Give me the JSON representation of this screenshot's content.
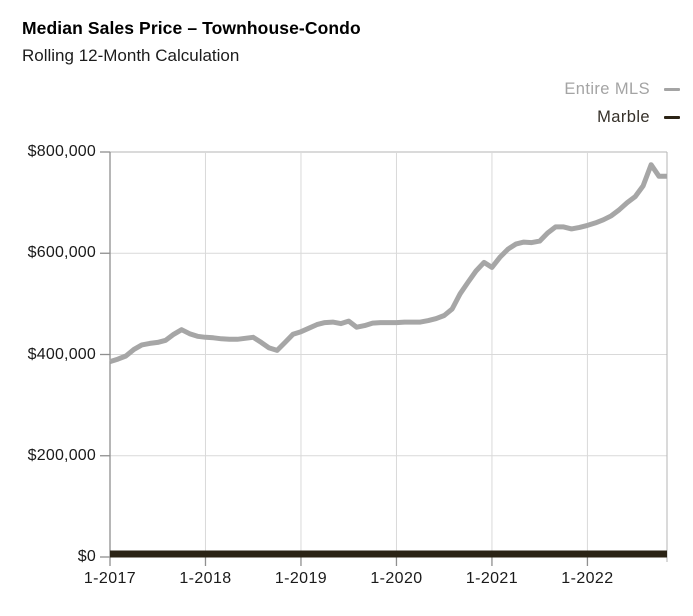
{
  "header": {
    "title": "Median Sales Price – Townhouse-Condo",
    "subtitle": "Rolling 12-Month Calculation"
  },
  "legend": [
    {
      "label": "Entire MLS",
      "color": "#a4a4a4",
      "label_color": "#a4a4a4",
      "icon": "dash"
    },
    {
      "label": "Marble",
      "color": "#2b2315",
      "label_color": "#353029",
      "icon": "dash"
    }
  ],
  "colors": {
    "background": "#ffffff",
    "entire_mls_line": "#a6a6a6",
    "marble_line": "#2b2315",
    "gridline": "#d9d9d9",
    "plot_border": "#b5b5b5",
    "axis": "#8f8f8f",
    "axis_text": "#1a1a1a"
  },
  "chart_data": {
    "type": "line",
    "title": "Median Sales Price – Townhouse-Condo",
    "subtitle": "Rolling 12-Month Calculation",
    "x_interval": "monthly",
    "x_first": "1-2017",
    "x_last": "11-2022",
    "xtick_labels": [
      "1-2017",
      "1-2018",
      "1-2019",
      "1-2020",
      "1-2021",
      "1-2022"
    ],
    "ytick_labels": [
      "$0",
      "$200,000",
      "$400,000",
      "$600,000",
      "$800,000"
    ],
    "ytick_values": [
      0,
      200000,
      400000,
      600000,
      800000
    ],
    "ylim": [
      0,
      800000
    ],
    "grid": true,
    "legend_position": "top-right",
    "series": [
      {
        "name": "Entire MLS",
        "color": "#a6a6a6",
        "values": [
          386000,
          391000,
          397000,
          410000,
          419000,
          422000,
          424000,
          428000,
          440000,
          449000,
          441000,
          436000,
          434000,
          433000,
          431000,
          430000,
          430000,
          432000,
          434000,
          424000,
          413000,
          408000,
          424000,
          440000,
          445000,
          452000,
          459000,
          463000,
          464000,
          461000,
          466000,
          454000,
          457000,
          462000,
          463000,
          463000,
          463000,
          464000,
          464000,
          464000,
          467000,
          471000,
          477000,
          490000,
          520000,
          543000,
          565000,
          582000,
          572000,
          592000,
          608000,
          618000,
          622000,
          621000,
          624000,
          640000,
          652000,
          652000,
          648000,
          651000,
          655000,
          660000,
          666000,
          674000,
          686000,
          700000,
          712000,
          733000,
          775000,
          752000,
          752000
        ]
      },
      {
        "name": "Marble",
        "color": "#2b2315",
        "values": [
          0,
          0,
          0,
          0,
          0,
          0,
          0,
          0,
          0,
          0,
          0,
          0,
          0,
          0,
          0,
          0,
          0,
          0,
          0,
          0,
          0,
          0,
          0,
          0,
          0,
          0,
          0,
          0,
          0,
          0,
          0,
          0,
          0,
          0,
          0,
          0,
          0,
          0,
          0,
          0,
          0,
          0,
          0,
          0,
          0,
          0,
          0,
          0,
          0,
          0,
          0,
          0,
          0,
          0,
          0,
          0,
          0,
          0,
          0,
          0,
          0,
          0,
          0,
          0,
          0,
          0,
          0,
          0,
          0,
          0,
          0
        ]
      }
    ]
  }
}
